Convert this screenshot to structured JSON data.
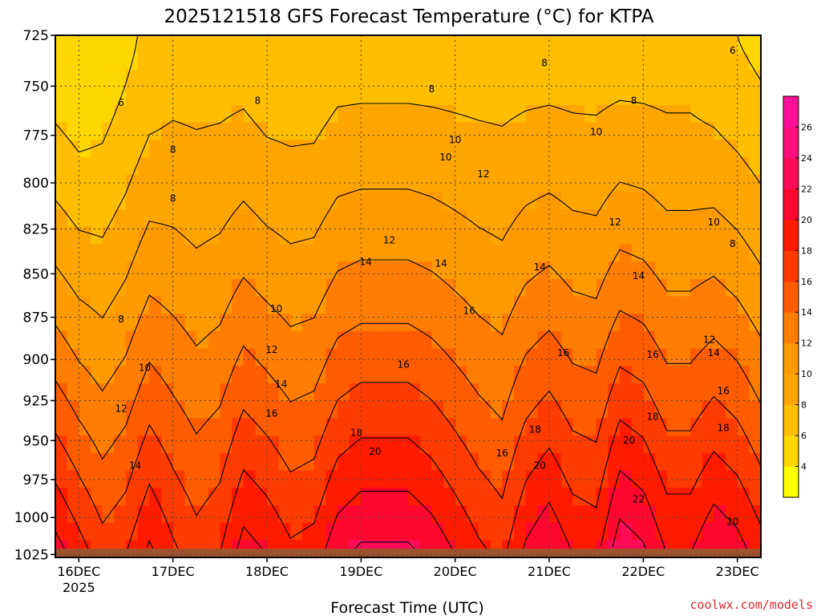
{
  "chart_data": {
    "type": "heatmap",
    "title": "2025121518 GFS Forecast Temperature (°C) for KTPA",
    "xlabel": "Forecast Time (UTC)",
    "ylabel": "",
    "x_ticks": [
      {
        "label": "16DEC",
        "sublabel": "2025",
        "day": 16
      },
      {
        "label": "17DEC",
        "day": 17
      },
      {
        "label": "18DEC",
        "day": 18
      },
      {
        "label": "19DEC",
        "day": 19
      },
      {
        "label": "20DEC",
        "day": 20
      },
      {
        "label": "21DEC",
        "day": 21
      },
      {
        "label": "22DEC",
        "day": 22
      },
      {
        "label": "23DEC",
        "day": 23
      }
    ],
    "x_range_days": [
      15.75,
      23.25
    ],
    "y_ticks": [
      "725",
      "750",
      "775",
      "800",
      "825",
      "850",
      "875",
      "900",
      "925",
      "950",
      "975",
      "1000",
      "1025"
    ],
    "y_range_hpa": [
      725,
      1027
    ],
    "y_scale": "log-pressure",
    "grid": true,
    "colorbar": {
      "levels": [
        2,
        4,
        6,
        8,
        10,
        12,
        14,
        16,
        18,
        20,
        22,
        24,
        26,
        28
      ],
      "tick_labels": [
        "4",
        "6",
        "8",
        "10",
        "12",
        "14",
        "16",
        "18",
        "20",
        "22",
        "24",
        "26"
      ],
      "colors": [
        "#ffff00",
        "#ffd700",
        "#ffbf00",
        "#ffa500",
        "#ff9a00",
        "#ff7d00",
        "#ff5c00",
        "#ff3b00",
        "#ff1b00",
        "#ff0830",
        "#ff0c58",
        "#ff0f7a",
        "#ff1099"
      ]
    },
    "ground_color": "#a0522d",
    "profiles": [
      {
        "day": 15.75,
        "T725": 4.5,
        "T1025": 21
      },
      {
        "day": 16.0,
        "T725": 4.0,
        "T1025": 19
      },
      {
        "day": 16.25,
        "T725": 4.5,
        "T1025": 17
      },
      {
        "day": 16.5,
        "T725": 5.5,
        "T1025": 18
      },
      {
        "day": 16.75,
        "T725": 6.5,
        "T1025": 20.5
      },
      {
        "day": 17.0,
        "T725": 7.0,
        "T1025": 18.5
      },
      {
        "day": 17.25,
        "T725": 7.0,
        "T1025": 17
      },
      {
        "day": 17.5,
        "T725": 7.0,
        "T1025": 18
      },
      {
        "day": 17.75,
        "T725": 7.0,
        "T1025": 21
      },
      {
        "day": 18.0,
        "T725": 6.5,
        "T1025": 20
      },
      {
        "day": 18.25,
        "T725": 6.5,
        "T1025": 18.5
      },
      {
        "day": 18.5,
        "T725": 6.5,
        "T1025": 19
      },
      {
        "day": 18.75,
        "T725": 7.0,
        "T1025": 21.5
      },
      {
        "day": 19.0,
        "T725": 7.0,
        "T1025": 22.5
      },
      {
        "day": 19.25,
        "T725": 7.0,
        "T1025": 22.5
      },
      {
        "day": 19.5,
        "T725": 7.0,
        "T1025": 22.5
      },
      {
        "day": 19.75,
        "T725": 7.0,
        "T1025": 21.5
      },
      {
        "day": 20.0,
        "T725": 7.0,
        "T1025": 20
      },
      {
        "day": 20.25,
        "T725": 7.0,
        "T1025": 18.5
      },
      {
        "day": 20.5,
        "T725": 7.0,
        "T1025": 17.5
      },
      {
        "day": 20.75,
        "T725": 7.0,
        "T1025": 20.5
      },
      {
        "day": 21.0,
        "T725": 7.0,
        "T1025": 22
      },
      {
        "day": 21.25,
        "T725": 7.0,
        "T1025": 20
      },
      {
        "day": 21.5,
        "T725": 7.0,
        "T1025": 19.5
      },
      {
        "day": 21.75,
        "T725": 7.0,
        "T1025": 23.5
      },
      {
        "day": 22.0,
        "T725": 7.0,
        "T1025": 22.5
      },
      {
        "day": 22.25,
        "T725": 7.0,
        "T1025": 20
      },
      {
        "day": 22.5,
        "T725": 7.0,
        "T1025": 20
      },
      {
        "day": 22.75,
        "T725": 6.5,
        "T1025": 22
      },
      {
        "day": 23.0,
        "T725": 6.0,
        "T1025": 21
      },
      {
        "day": 23.25,
        "T725": 5.5,
        "T1025": 19
      }
    ],
    "contour_labels": [
      {
        "text": "6",
        "day": 16.45,
        "p": 760
      },
      {
        "text": "8",
        "day": 17.0,
        "p": 784
      },
      {
        "text": "8",
        "day": 17.0,
        "p": 810
      },
      {
        "text": "8",
        "day": 16.45,
        "p": 878
      },
      {
        "text": "10",
        "day": 16.7,
        "p": 907
      },
      {
        "text": "12",
        "day": 16.45,
        "p": 932
      },
      {
        "text": "14",
        "day": 16.6,
        "p": 968
      },
      {
        "text": "8",
        "day": 17.9,
        "p": 759
      },
      {
        "text": "10",
        "day": 18.1,
        "p": 872
      },
      {
        "text": "12",
        "day": 18.05,
        "p": 896
      },
      {
        "text": "14",
        "day": 18.15,
        "p": 917
      },
      {
        "text": "16",
        "day": 18.05,
        "p": 935
      },
      {
        "text": "18",
        "day": 18.95,
        "p": 947
      },
      {
        "text": "20",
        "day": 19.15,
        "p": 959
      },
      {
        "text": "8",
        "day": 19.75,
        "p": 753
      },
      {
        "text": "10",
        "day": 19.9,
        "p": 788
      },
      {
        "text": "10",
        "day": 20.0,
        "p": 779
      },
      {
        "text": "12",
        "day": 20.3,
        "p": 797
      },
      {
        "text": "12",
        "day": 19.3,
        "p": 833
      },
      {
        "text": "14",
        "day": 19.05,
        "p": 845
      },
      {
        "text": "14",
        "day": 19.85,
        "p": 846
      },
      {
        "text": "16",
        "day": 19.45,
        "p": 905
      },
      {
        "text": "16",
        "day": 20.15,
        "p": 873
      },
      {
        "text": "16",
        "day": 20.5,
        "p": 960
      },
      {
        "text": "8",
        "day": 20.95,
        "p": 740
      },
      {
        "text": "14",
        "day": 20.9,
        "p": 848
      },
      {
        "text": "16",
        "day": 21.15,
        "p": 898
      },
      {
        "text": "18",
        "day": 20.85,
        "p": 945
      },
      {
        "text": "20",
        "day": 20.9,
        "p": 968
      },
      {
        "text": "10",
        "day": 21.5,
        "p": 775
      },
      {
        "text": "8",
        "day": 21.9,
        "p": 759
      },
      {
        "text": "12",
        "day": 21.7,
        "p": 823
      },
      {
        "text": "14",
        "day": 21.95,
        "p": 853
      },
      {
        "text": "16",
        "day": 22.1,
        "p": 899
      },
      {
        "text": "18",
        "day": 22.1,
        "p": 937
      },
      {
        "text": "20",
        "day": 21.85,
        "p": 952
      },
      {
        "text": "22",
        "day": 21.95,
        "p": 990
      },
      {
        "text": "6",
        "day": 22.95,
        "p": 734
      },
      {
        "text": "10",
        "day": 22.75,
        "p": 823
      },
      {
        "text": "8",
        "day": 22.95,
        "p": 835
      },
      {
        "text": "12",
        "day": 22.7,
        "p": 890
      },
      {
        "text": "14",
        "day": 22.75,
        "p": 898
      },
      {
        "text": "16",
        "day": 22.85,
        "p": 921
      },
      {
        "text": "18",
        "day": 22.85,
        "p": 944
      },
      {
        "text": "20",
        "day": 22.95,
        "p": 1005
      }
    ]
  },
  "credit": "coolwx.com/models"
}
